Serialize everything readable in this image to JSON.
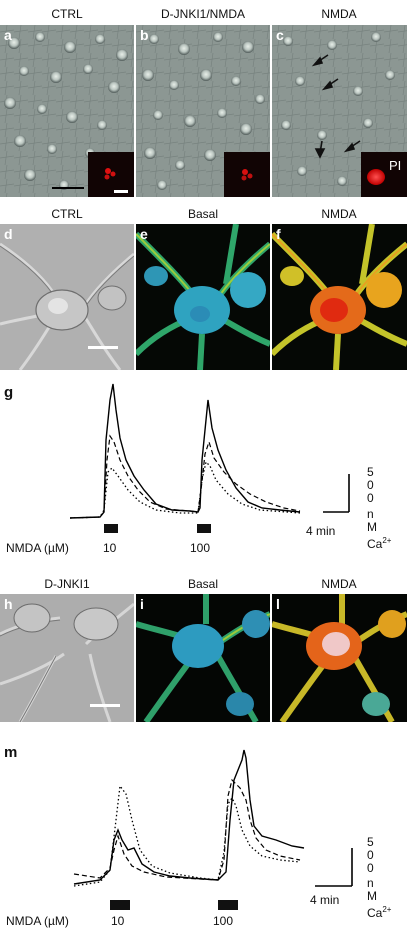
{
  "row1": {
    "titles": [
      "CTRL",
      "D-JNKI1/NMDA",
      "NMDA"
    ],
    "letters": [
      "a",
      "b",
      "c"
    ],
    "inset_label": "PI"
  },
  "row2": {
    "titles": [
      "CTRL",
      "Basal",
      "NMDA"
    ],
    "letters": [
      "d",
      "e",
      "f"
    ]
  },
  "panel_g": {
    "letter": "g",
    "stim_label": "NMDA (µM)",
    "doses": [
      "10",
      "100"
    ],
    "scale_value": [
      "5",
      "0",
      "0"
    ],
    "scale_unit": [
      "n",
      "M",
      "Ca"
    ],
    "scale_sup": "2+",
    "time_scale": "4 min"
  },
  "row3": {
    "titles": [
      "D-JNKI1",
      "Basal",
      "NMDA"
    ],
    "letters": [
      "h",
      "i",
      "l"
    ]
  },
  "panel_m": {
    "letter": "m",
    "stim_label": "NMDA (µM)",
    "doses": [
      "10",
      "100"
    ],
    "scale_value": [
      "5",
      "0",
      "0"
    ],
    "scale_unit": [
      "n",
      "M",
      "Ca"
    ],
    "scale_sup": "2+",
    "time_scale": "4 min"
  }
}
